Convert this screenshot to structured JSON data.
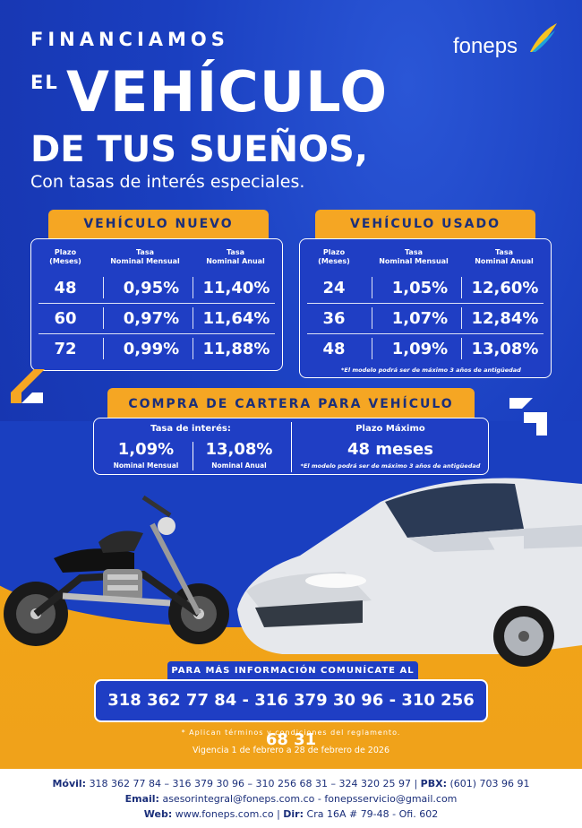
{
  "header": {
    "line1": "FINANCIAMOS",
    "line2a": "EL",
    "line2b": "VEHÍCULO",
    "line3": "DE TUS SUEÑOS,",
    "line4": "Con tasas de interés especiales."
  },
  "brand": {
    "name": "foneps",
    "colors": {
      "blue": "#1f3ec4",
      "orange": "#f5a623"
    }
  },
  "nuevo": {
    "title": "VEHÍCULO NUEVO",
    "headers": [
      "Plazo\n(Meses)",
      "Tasa\nNominal Mensual",
      "Tasa\nNominal Anual"
    ],
    "rows": [
      [
        "48",
        "0,95%",
        "11,40%"
      ],
      [
        "60",
        "0,97%",
        "11,64%"
      ],
      [
        "72",
        "0,99%",
        "11,88%"
      ]
    ]
  },
  "usado": {
    "title": "VEHÍCULO USADO",
    "headers": [
      "Plazo\n(Meses)",
      "Tasa\nNominal Mensual",
      "Tasa\nNominal Anual"
    ],
    "rows": [
      [
        "24",
        "1,05%",
        "12,60%"
      ],
      [
        "36",
        "1,07%",
        "12,84%"
      ],
      [
        "48",
        "1,09%",
        "13,08%"
      ]
    ],
    "note": "*El modelo podrá ser de máximo 3 años de antigüedad"
  },
  "cartera": {
    "title": "COMPRA DE CARTERA PARA VEHÍCULO",
    "rate_label": "Tasa de interés:",
    "monthly_value": "1,09%",
    "monthly_label": "Nominal Mensual",
    "annual_value": "13,08%",
    "annual_label": "Nominal Anual",
    "term_label": "Plazo Máximo",
    "term_value": "48 meses",
    "note": "*El modelo podrá ser de máximo 3 años de antigüedad"
  },
  "contact": {
    "info_label": "PARA MÁS INFORMACIÓN COMUNÍCATE AL",
    "phones": "318 362 77 84 - 316 379 30 96 - 310 256 68 31",
    "terms": "* Aplican términos y condiciones del reglamento.",
    "vigencia": "Vigencia 1 de febrero a 28 de febrero de 2026"
  },
  "footer": {
    "movil_label": "Móvil:",
    "movil": "318 362 77 84 – 316 379 30 96 – 310 256 68 31 – 324 320 25 97",
    "pbx_label": "PBX:",
    "pbx": "(601) 703 96 91",
    "email_label": "Email:",
    "email": "asesorintegral@foneps.com.co - fonepsservicio@gmail.com",
    "web_label": "Web:",
    "web": "www.foneps.com.co",
    "dir_label": "Dir:",
    "dir": "Cra 16A # 79-48 - Ofi. 602"
  }
}
